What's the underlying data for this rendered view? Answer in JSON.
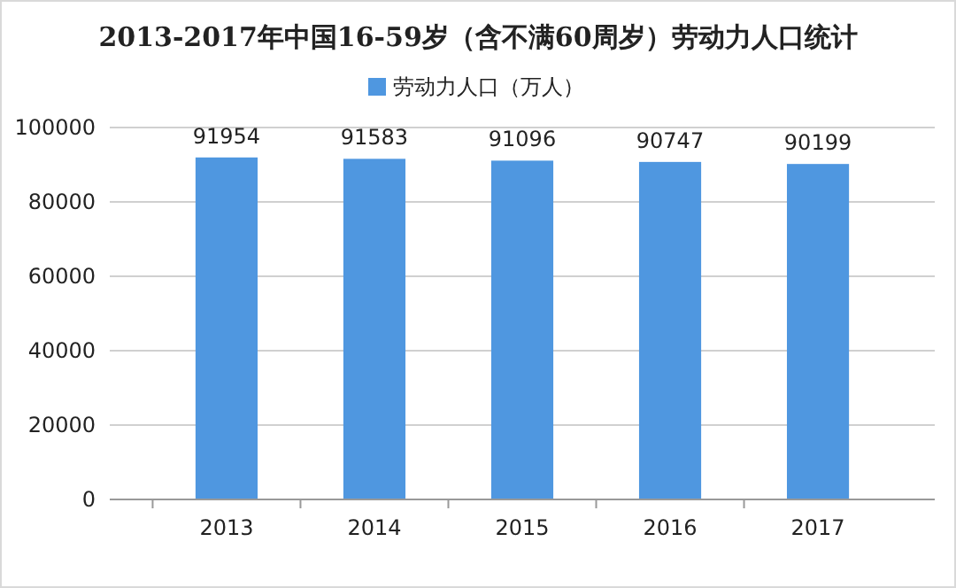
{
  "chart_data": {
    "type": "bar",
    "title": "2013-2017年中国16-59岁（含不满60周岁）劳动力人口统计",
    "categories": [
      "2013",
      "2014",
      "2015",
      "2016",
      "2017"
    ],
    "series": [
      {
        "name": "劳动力人口（万人）",
        "color": "#4f97e0",
        "values": [
          91954,
          91583,
          91096,
          90747,
          90199
        ]
      }
    ],
    "ylim": [
      0,
      100000
    ],
    "yticks": [
      0,
      20000,
      40000,
      60000,
      80000,
      100000
    ],
    "grid": "y",
    "legend": "top",
    "data_labels": true
  }
}
